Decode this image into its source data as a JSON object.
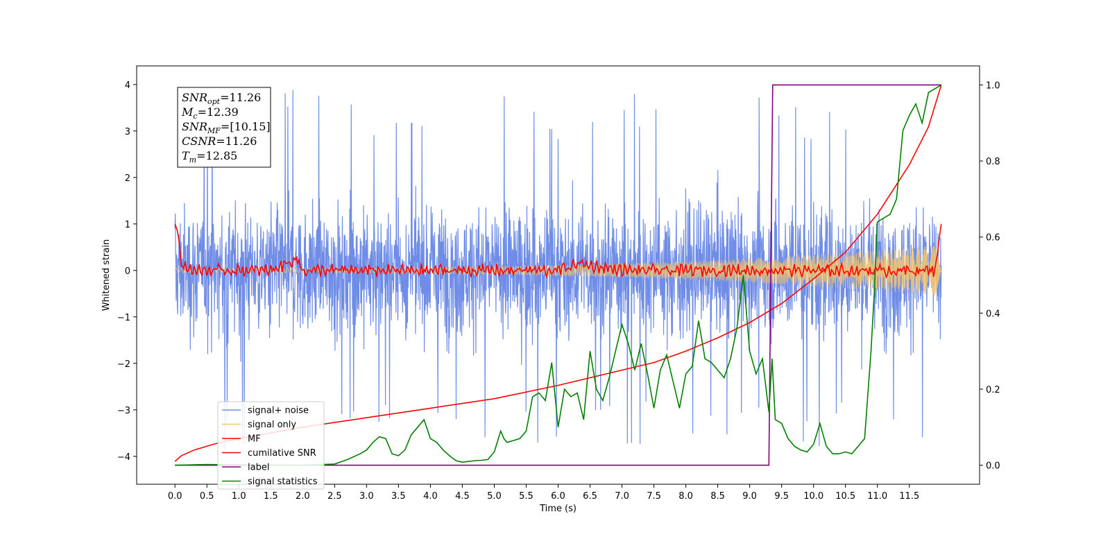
{
  "chart_data": {
    "type": "line",
    "xlabel": "Time (s)",
    "ylabel_left": "Whitened strain",
    "ylabel_right": "",
    "xlim": [
      -0.6,
      12.6
    ],
    "ylim_left": [
      -4.6,
      4.4
    ],
    "ylim_right": [
      -0.05,
      1.05
    ],
    "x_ticks": [
      0.0,
      0.5,
      1.0,
      1.5,
      2.0,
      2.5,
      3.0,
      3.5,
      4.0,
      4.5,
      5.0,
      5.5,
      6.0,
      6.5,
      7.0,
      7.5,
      8.0,
      8.5,
      9.0,
      9.5,
      10.0,
      10.5,
      11.0,
      11.5
    ],
    "x_tick_labels": [
      "0.0",
      "0.5",
      "1.0",
      "1.5",
      "2.0",
      "2.5",
      "3.0",
      "3.5",
      "4.0",
      "4.5",
      "5.0",
      "5.5",
      "6.0",
      "6.5",
      "7.0",
      "7.5",
      "8.0",
      "8.5",
      "9.0",
      "9.5",
      "10.0",
      "10.5",
      "11.0",
      "11.5"
    ],
    "y_left_ticks": [
      -4,
      -3,
      -2,
      -1,
      0,
      1,
      2,
      3,
      4
    ],
    "y_left_tick_labels": [
      "−4",
      "−3",
      "−2",
      "−1",
      "0",
      "1",
      "2",
      "3",
      "4"
    ],
    "y_right_ticks": [
      0.0,
      0.2,
      0.4,
      0.6,
      0.8,
      1.0
    ],
    "y_right_tick_labels": [
      "0.0",
      "0.2",
      "0.4",
      "0.6",
      "0.8",
      "1.0"
    ],
    "grid": false,
    "legend_position": "lower-left",
    "legend": [
      {
        "label": "signal+ noise",
        "color": "#6f8de6"
      },
      {
        "label": "signal only",
        "color": "#f5c46a"
      },
      {
        "label": "MF",
        "color": "#ff0000"
      },
      {
        "label": "cumilative SNR",
        "color": "#ff0000"
      },
      {
        "label": "label",
        "color": "#800080"
      },
      {
        "label": "signal statistics",
        "color": "#008000"
      }
    ],
    "annotation_box": [
      {
        "base": "SNR",
        "sub": "opt",
        "value": "=11.26"
      },
      {
        "base": "M",
        "sub": "c",
        "value": "=12.39"
      },
      {
        "base": "SNR",
        "sub": "MF",
        "value": "=[10.15]"
      },
      {
        "base": "CSNR",
        "sub": "",
        "value": "=11.26"
      },
      {
        "base": "T",
        "sub": "m",
        "value": "=12.85"
      }
    ],
    "series": [
      {
        "name": "signal+ noise",
        "axis": "left",
        "color": "#6f8de6",
        "style": "noise",
        "x_range": [
          0.0,
          12.0
        ],
        "amplitude_band": [
          -2.5,
          2.5
        ],
        "peaks_max": 4.0,
        "peaks_min": -4.15
      },
      {
        "name": "signal only",
        "axis": "left",
        "color": "#f5c46a",
        "style": "chirp",
        "x_range": [
          0.0,
          12.0
        ],
        "envelope_start": 0.05,
        "envelope_end": 0.55
      },
      {
        "name": "MF",
        "axis": "left",
        "color": "#ff0000",
        "style": "mf",
        "x": [
          0.0,
          0.05,
          0.1,
          0.2,
          0.3,
          0.5,
          1.0,
          1.5,
          1.9,
          2.0,
          3.0,
          3.5,
          4.0,
          5.0,
          6.0,
          6.3,
          7.0,
          8.0,
          9.0,
          10.0,
          11.0,
          11.9,
          12.0
        ],
        "y": [
          1.0,
          0.8,
          0.1,
          0.05,
          0.0,
          0.0,
          0.0,
          0.0,
          0.25,
          0.0,
          0.0,
          0.0,
          0.0,
          0.0,
          0.0,
          0.15,
          0.0,
          0.0,
          0.0,
          0.0,
          0.0,
          0.0,
          1.0
        ]
      },
      {
        "name": "cumilative SNR",
        "axis": "right",
        "color": "#ff0000",
        "x": [
          0.0,
          0.1,
          0.3,
          0.6,
          1.0,
          1.5,
          2.0,
          3.0,
          4.0,
          5.0,
          6.0,
          7.0,
          7.5,
          8.0,
          8.5,
          9.0,
          9.5,
          10.0,
          10.5,
          11.0,
          11.5,
          11.8,
          12.0
        ],
        "y": [
          0.01,
          0.025,
          0.04,
          0.055,
          0.07,
          0.085,
          0.1,
          0.125,
          0.15,
          0.175,
          0.21,
          0.25,
          0.27,
          0.3,
          0.335,
          0.375,
          0.425,
          0.49,
          0.56,
          0.66,
          0.79,
          0.89,
          1.0
        ]
      },
      {
        "name": "label",
        "axis": "right",
        "color": "#800080",
        "x": [
          0.0,
          9.3,
          9.36,
          12.0
        ],
        "y": [
          0.0,
          0.0,
          1.0,
          1.0
        ]
      },
      {
        "name": "signal statistics",
        "axis": "right",
        "color": "#008000",
        "x": [
          0.0,
          0.5,
          1.0,
          1.5,
          2.0,
          2.5,
          2.7,
          2.9,
          3.0,
          3.1,
          3.2,
          3.3,
          3.4,
          3.5,
          3.6,
          3.7,
          3.8,
          3.9,
          4.0,
          4.1,
          4.2,
          4.3,
          4.4,
          4.5,
          4.6,
          4.7,
          4.8,
          4.9,
          5.0,
          5.1,
          5.15,
          5.2,
          5.3,
          5.4,
          5.5,
          5.6,
          5.7,
          5.8,
          5.9,
          6.0,
          6.1,
          6.2,
          6.3,
          6.4,
          6.5,
          6.6,
          6.7,
          6.8,
          6.9,
          7.0,
          7.1,
          7.2,
          7.3,
          7.4,
          7.5,
          7.6,
          7.7,
          7.8,
          7.9,
          8.0,
          8.1,
          8.2,
          8.3,
          8.4,
          8.5,
          8.6,
          8.7,
          8.8,
          8.9,
          9.0,
          9.1,
          9.2,
          9.3,
          9.35,
          9.4,
          9.5,
          9.6,
          9.7,
          9.8,
          9.9,
          10.0,
          10.1,
          10.2,
          10.3,
          10.4,
          10.5,
          10.6,
          10.7,
          10.8,
          10.9,
          10.95,
          11.0,
          11.1,
          11.2,
          11.3,
          11.4,
          11.5,
          11.6,
          11.7,
          11.8,
          11.9,
          12.0
        ],
        "y": [
          0.0,
          0.002,
          0.001,
          0.0,
          0.0,
          0.003,
          0.015,
          0.03,
          0.04,
          0.06,
          0.075,
          0.07,
          0.03,
          0.025,
          0.04,
          0.08,
          0.1,
          0.12,
          0.07,
          0.06,
          0.04,
          0.025,
          0.012,
          0.008,
          0.01,
          0.012,
          0.013,
          0.015,
          0.035,
          0.09,
          0.07,
          0.06,
          0.065,
          0.07,
          0.09,
          0.18,
          0.19,
          0.17,
          0.27,
          0.1,
          0.2,
          0.18,
          0.19,
          0.12,
          0.3,
          0.2,
          0.17,
          0.23,
          0.3,
          0.37,
          0.32,
          0.25,
          0.32,
          0.24,
          0.15,
          0.25,
          0.29,
          0.22,
          0.15,
          0.24,
          0.26,
          0.38,
          0.28,
          0.27,
          0.25,
          0.23,
          0.28,
          0.36,
          0.5,
          0.3,
          0.24,
          0.28,
          0.14,
          0.28,
          0.12,
          0.11,
          0.07,
          0.05,
          0.04,
          0.035,
          0.055,
          0.11,
          0.05,
          0.03,
          0.03,
          0.035,
          0.03,
          0.05,
          0.07,
          0.3,
          0.45,
          0.64,
          0.65,
          0.66,
          0.7,
          0.88,
          0.92,
          0.95,
          0.9,
          0.98,
          0.99,
          1.0
        ]
      }
    ]
  }
}
